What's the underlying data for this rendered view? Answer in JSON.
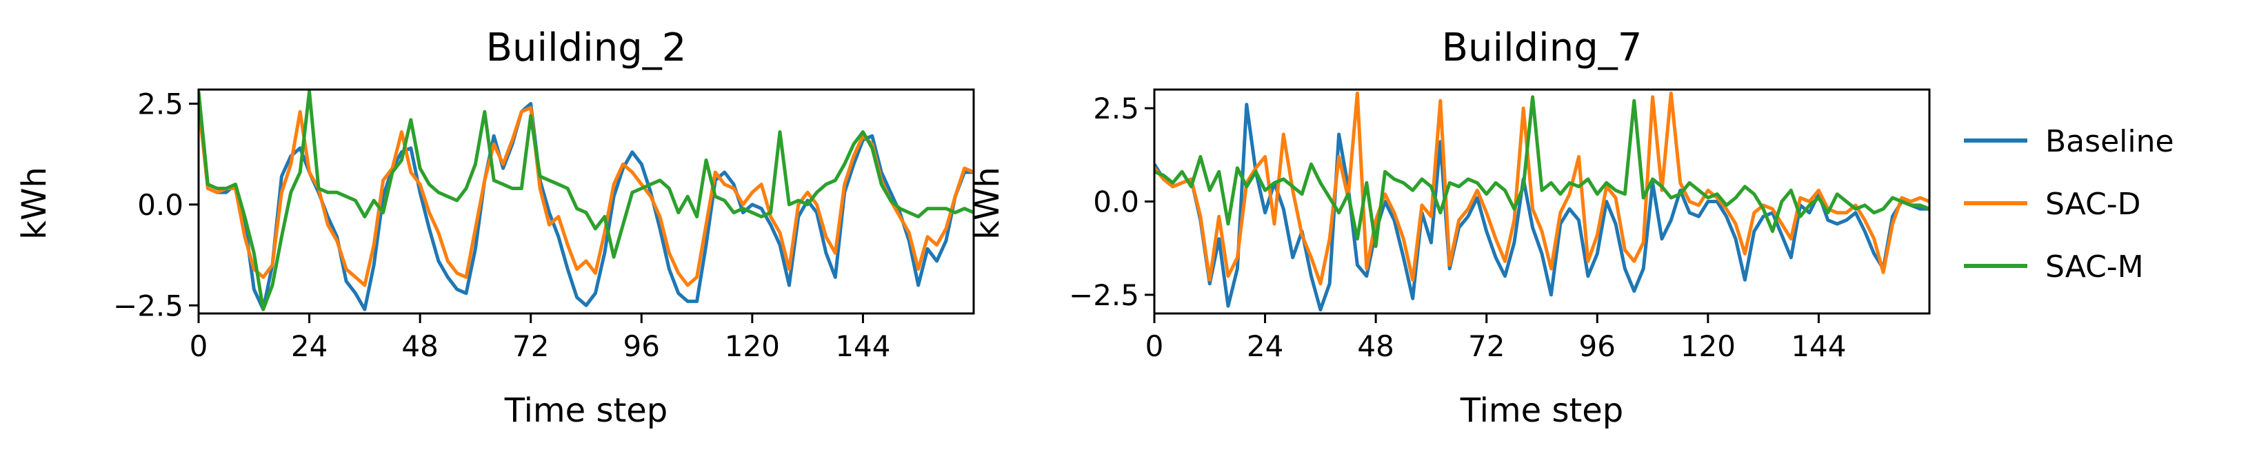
{
  "chart_data": [
    {
      "type": "line",
      "title": "Building_2",
      "xlabel": "Time step",
      "ylabel": "kWh",
      "xlim": [
        0,
        168
      ],
      "ylim": [
        -2.7,
        2.85
      ],
      "xticks": [
        0,
        24,
        48,
        72,
        96,
        120,
        144
      ],
      "yticks": [
        -2.5,
        0.0,
        2.5
      ],
      "ytick_labels": [
        "−2.5",
        "0.0",
        "2.5"
      ],
      "grid": false,
      "series": [
        {
          "name": "Baseline",
          "color": "#1f77b4",
          "x": [
            0,
            2,
            4,
            6,
            8,
            10,
            12,
            14,
            16,
            18,
            20,
            22,
            24,
            26,
            28,
            30,
            32,
            34,
            36,
            38,
            40,
            42,
            44,
            46,
            48,
            50,
            52,
            54,
            56,
            58,
            60,
            62,
            64,
            66,
            68,
            70,
            72,
            74,
            76,
            78,
            80,
            82,
            84,
            86,
            88,
            90,
            92,
            94,
            96,
            98,
            100,
            102,
            104,
            106,
            108,
            110,
            112,
            114,
            116,
            118,
            120,
            122,
            124,
            126,
            128,
            130,
            132,
            134,
            136,
            138,
            140,
            142,
            144,
            146,
            148,
            150,
            152,
            154,
            156,
            158,
            160,
            162,
            164,
            166,
            168
          ],
          "y": [
            2.6,
            0.4,
            0.3,
            0.3,
            0.5,
            -0.4,
            -2.1,
            -2.6,
            -1.5,
            0.7,
            1.2,
            1.4,
            0.8,
            0.3,
            -0.3,
            -0.8,
            -1.9,
            -2.2,
            -2.6,
            -1.5,
            0.2,
            0.9,
            1.3,
            1.4,
            0.3,
            -0.6,
            -1.4,
            -1.8,
            -2.1,
            -2.2,
            -1.1,
            0.6,
            1.7,
            0.9,
            1.5,
            2.3,
            2.5,
            0.6,
            -0.2,
            -0.8,
            -1.6,
            -2.3,
            -2.5,
            -2.2,
            -1.2,
            0.2,
            0.9,
            1.3,
            1.0,
            0.3,
            -0.6,
            -1.6,
            -2.2,
            -2.4,
            -2.4,
            -1.0,
            0.6,
            0.8,
            0.5,
            -0.2,
            0.0,
            -0.1,
            -0.5,
            -1.0,
            -2.0,
            -0.3,
            0.1,
            -0.2,
            -1.2,
            -1.8,
            0.3,
            1.0,
            1.6,
            1.7,
            0.8,
            0.3,
            -0.2,
            -0.9,
            -2.0,
            -1.1,
            -1.4,
            -0.9,
            0.2,
            0.8,
            0.8
          ]
        },
        {
          "name": "SAC-D",
          "color": "#ff7f0e",
          "x": [
            0,
            2,
            4,
            6,
            8,
            10,
            12,
            14,
            16,
            18,
            20,
            22,
            24,
            26,
            28,
            30,
            32,
            34,
            36,
            38,
            40,
            42,
            44,
            46,
            48,
            50,
            52,
            54,
            56,
            58,
            60,
            62,
            64,
            66,
            68,
            70,
            72,
            74,
            76,
            78,
            80,
            82,
            84,
            86,
            88,
            90,
            92,
            94,
            96,
            98,
            100,
            102,
            104,
            106,
            108,
            110,
            112,
            114,
            116,
            118,
            120,
            122,
            124,
            126,
            128,
            130,
            132,
            134,
            136,
            138,
            140,
            142,
            144,
            146,
            148,
            150,
            152,
            154,
            156,
            158,
            160,
            162,
            164,
            166,
            168
          ],
          "y": [
            2.5,
            0.4,
            0.3,
            0.4,
            0.4,
            -0.8,
            -1.6,
            -1.8,
            -1.5,
            0.3,
            1.0,
            2.3,
            0.8,
            0.4,
            -0.5,
            -0.9,
            -1.6,
            -1.8,
            -2.0,
            -1.0,
            0.6,
            0.9,
            1.8,
            0.8,
            0.5,
            -0.2,
            -0.7,
            -1.4,
            -1.7,
            -1.8,
            -0.6,
            0.6,
            1.5,
            1.0,
            1.6,
            2.3,
            2.4,
            0.4,
            -0.5,
            -0.3,
            -1.0,
            -1.6,
            -1.4,
            -1.7,
            -0.7,
            0.5,
            1.0,
            0.8,
            0.5,
            0.2,
            -0.3,
            -1.2,
            -1.7,
            -2.0,
            -1.8,
            -0.5,
            0.8,
            0.5,
            0.4,
            0.0,
            0.3,
            0.5,
            -0.3,
            -0.7,
            -1.6,
            0.0,
            0.3,
            0.0,
            -0.8,
            -1.2,
            0.5,
            1.2,
            1.7,
            1.5,
            0.6,
            0.1,
            -0.3,
            -0.7,
            -1.6,
            -0.8,
            -1.0,
            -0.6,
            0.2,
            0.9,
            0.8
          ]
        },
        {
          "name": "SAC-M",
          "color": "#2ca02c",
          "x": [
            0,
            2,
            4,
            6,
            8,
            10,
            12,
            14,
            16,
            18,
            20,
            22,
            24,
            26,
            28,
            30,
            32,
            34,
            36,
            38,
            40,
            42,
            44,
            46,
            48,
            50,
            52,
            54,
            56,
            58,
            60,
            62,
            64,
            66,
            68,
            70,
            72,
            74,
            76,
            78,
            80,
            82,
            84,
            86,
            88,
            90,
            92,
            94,
            96,
            98,
            100,
            102,
            104,
            106,
            108,
            110,
            112,
            114,
            116,
            118,
            120,
            122,
            124,
            126,
            128,
            130,
            132,
            134,
            136,
            138,
            140,
            142,
            144,
            146,
            148,
            150,
            152,
            154,
            156,
            158,
            160,
            162,
            164,
            166,
            168
          ],
          "y": [
            2.8,
            0.5,
            0.4,
            0.4,
            0.5,
            -0.3,
            -1.2,
            -2.6,
            -2.0,
            -0.8,
            0.3,
            0.8,
            2.8,
            0.4,
            0.3,
            0.3,
            0.2,
            0.1,
            -0.3,
            0.1,
            -0.2,
            0.8,
            1.1,
            2.1,
            0.9,
            0.5,
            0.3,
            0.2,
            0.1,
            0.4,
            1.0,
            2.3,
            0.6,
            0.5,
            0.4,
            0.4,
            2.2,
            0.7,
            0.6,
            0.5,
            0.4,
            -0.1,
            -0.2,
            -0.6,
            -0.3,
            -1.3,
            -0.5,
            0.3,
            0.4,
            0.5,
            0.6,
            0.4,
            -0.2,
            0.2,
            -0.3,
            1.1,
            0.2,
            0.1,
            -0.2,
            -0.1,
            -0.2,
            -0.3,
            -0.2,
            1.8,
            0.0,
            0.1,
            0.0,
            0.3,
            0.5,
            0.6,
            1.0,
            1.5,
            1.8,
            1.4,
            0.5,
            0.1,
            -0.1,
            -0.2,
            -0.3,
            -0.1,
            -0.1,
            -0.1,
            -0.2,
            -0.1,
            -0.2
          ]
        }
      ]
    },
    {
      "type": "line",
      "title": "Building_7",
      "xlabel": "Time step",
      "ylabel": "kWh",
      "xlim": [
        0,
        168
      ],
      "ylim": [
        -3.0,
        3.0
      ],
      "xticks": [
        0,
        24,
        48,
        72,
        96,
        120,
        144
      ],
      "yticks": [
        -2.5,
        0.0,
        2.5
      ],
      "ytick_labels": [
        "−2.5",
        "0.0",
        "2.5"
      ],
      "grid": false,
      "series": [
        {
          "name": "Baseline",
          "color": "#1f77b4",
          "x": [
            0,
            2,
            4,
            6,
            8,
            10,
            12,
            14,
            16,
            18,
            20,
            22,
            24,
            26,
            28,
            30,
            32,
            34,
            36,
            38,
            40,
            42,
            44,
            46,
            48,
            50,
            52,
            54,
            56,
            58,
            60,
            62,
            64,
            66,
            68,
            70,
            72,
            74,
            76,
            78,
            80,
            82,
            84,
            86,
            88,
            90,
            92,
            94,
            96,
            98,
            100,
            102,
            104,
            106,
            108,
            110,
            112,
            114,
            116,
            118,
            120,
            122,
            124,
            126,
            128,
            130,
            132,
            134,
            136,
            138,
            140,
            142,
            144,
            146,
            148,
            150,
            152,
            154,
            156,
            158,
            160,
            162,
            164,
            166,
            168
          ],
          "y": [
            1.0,
            0.6,
            0.4,
            0.5,
            0.6,
            -0.5,
            -2.2,
            -1.0,
            -2.8,
            -1.8,
            2.6,
            0.8,
            -0.3,
            0.5,
            -0.2,
            -1.5,
            -0.8,
            -2.0,
            -2.9,
            -2.2,
            1.8,
            0.4,
            -1.7,
            -2.0,
            -0.8,
            0.0,
            -0.5,
            -1.5,
            -2.6,
            -0.3,
            -1.1,
            1.6,
            -1.8,
            -0.7,
            -0.4,
            0.1,
            -0.8,
            -1.5,
            -2.0,
            -1.1,
            0.6,
            -0.7,
            -1.4,
            -2.5,
            -0.6,
            -0.2,
            -0.5,
            -2.0,
            -1.4,
            0.0,
            -0.6,
            -1.8,
            -2.4,
            -1.8,
            0.5,
            -1.0,
            -0.5,
            0.3,
            -0.3,
            -0.4,
            0.0,
            0.0,
            -0.4,
            -1.0,
            -2.1,
            -0.8,
            -0.4,
            -0.3,
            -0.9,
            -1.5,
            -0.1,
            -0.3,
            0.2,
            -0.5,
            -0.6,
            -0.5,
            -0.3,
            -0.8,
            -1.4,
            -1.8,
            -0.4,
            0.0,
            -0.1,
            -0.2,
            -0.2
          ]
        },
        {
          "name": "SAC-D",
          "color": "#ff7f0e",
          "x": [
            0,
            2,
            4,
            6,
            8,
            10,
            12,
            14,
            16,
            18,
            20,
            22,
            24,
            26,
            28,
            30,
            32,
            34,
            36,
            38,
            40,
            42,
            44,
            46,
            48,
            50,
            52,
            54,
            56,
            58,
            60,
            62,
            64,
            66,
            68,
            70,
            72,
            74,
            76,
            78,
            80,
            82,
            84,
            86,
            88,
            90,
            92,
            94,
            96,
            98,
            100,
            102,
            104,
            106,
            108,
            110,
            112,
            114,
            116,
            118,
            120,
            122,
            124,
            126,
            128,
            130,
            132,
            134,
            136,
            138,
            140,
            142,
            144,
            146,
            148,
            150,
            152,
            154,
            156,
            158,
            160,
            162,
            164,
            166,
            168
          ],
          "y": [
            0.9,
            0.6,
            0.4,
            0.5,
            0.6,
            -0.4,
            -2.1,
            -0.4,
            -2.0,
            -1.5,
            0.5,
            0.9,
            1.2,
            -0.6,
            1.8,
            0.3,
            -0.9,
            -1.5,
            -2.2,
            -1.0,
            1.2,
            0.1,
            2.9,
            -1.8,
            -0.5,
            0.2,
            -0.3,
            -1.0,
            -2.1,
            -0.1,
            -0.4,
            2.7,
            -1.7,
            -0.5,
            -0.2,
            0.3,
            -0.3,
            -1.0,
            -1.6,
            -0.5,
            2.5,
            -0.2,
            -0.8,
            -1.8,
            -0.3,
            0.2,
            1.2,
            -1.6,
            -0.9,
            0.4,
            0.1,
            -1.3,
            -1.6,
            -1.1,
            2.8,
            0.3,
            2.9,
            0.5,
            0.0,
            -0.1,
            0.3,
            0.1,
            -0.2,
            -0.6,
            -1.4,
            -0.3,
            -0.1,
            -0.2,
            -0.6,
            -1.0,
            0.1,
            0.0,
            0.3,
            -0.2,
            -0.3,
            -0.3,
            -0.1,
            -0.5,
            -1.0,
            -1.9,
            -0.6,
            0.1,
            0.0,
            0.1,
            0.0
          ]
        },
        {
          "name": "SAC-M",
          "color": "#2ca02c",
          "x": [
            0,
            2,
            4,
            6,
            8,
            10,
            12,
            14,
            16,
            18,
            20,
            22,
            24,
            26,
            28,
            30,
            32,
            34,
            36,
            38,
            40,
            42,
            44,
            46,
            48,
            50,
            52,
            54,
            56,
            58,
            60,
            62,
            64,
            66,
            68,
            70,
            72,
            74,
            76,
            78,
            80,
            82,
            84,
            86,
            88,
            90,
            92,
            94,
            96,
            98,
            100,
            102,
            104,
            106,
            108,
            110,
            112,
            114,
            116,
            118,
            120,
            122,
            124,
            126,
            128,
            130,
            132,
            134,
            136,
            138,
            140,
            142,
            144,
            146,
            148,
            150,
            152,
            154,
            156,
            158,
            160,
            162,
            164,
            166,
            168
          ],
          "y": [
            0.8,
            0.7,
            0.5,
            0.8,
            0.4,
            1.2,
            0.3,
            0.8,
            -0.6,
            0.9,
            0.4,
            0.8,
            0.3,
            0.5,
            0.6,
            0.4,
            0.2,
            1.0,
            0.5,
            0.1,
            -0.3,
            0.2,
            -1.0,
            0.5,
            -1.2,
            0.8,
            0.6,
            0.5,
            0.3,
            0.6,
            0.4,
            -0.3,
            0.5,
            0.4,
            0.6,
            0.5,
            0.2,
            0.5,
            0.3,
            -0.2,
            0.4,
            2.8,
            0.3,
            0.5,
            0.2,
            0.5,
            0.4,
            0.6,
            0.2,
            0.5,
            0.3,
            0.2,
            2.7,
            0.1,
            0.6,
            0.4,
            0.1,
            0.2,
            0.5,
            0.3,
            0.1,
            0.2,
            -0.1,
            0.1,
            0.4,
            0.2,
            -0.2,
            -0.8,
            0.0,
            0.3,
            -0.4,
            -0.1,
            0.1,
            -0.3,
            0.2,
            0.0,
            -0.2,
            -0.1,
            -0.3,
            -0.2,
            0.1,
            0.0,
            -0.1,
            -0.1,
            -0.2
          ]
        }
      ]
    }
  ],
  "legend": {
    "placement": "right",
    "entries": [
      {
        "label": "Baseline",
        "color": "#1f77b4"
      },
      {
        "label": "SAC-D",
        "color": "#ff7f0e"
      },
      {
        "label": "SAC-M",
        "color": "#2ca02c"
      }
    ]
  }
}
